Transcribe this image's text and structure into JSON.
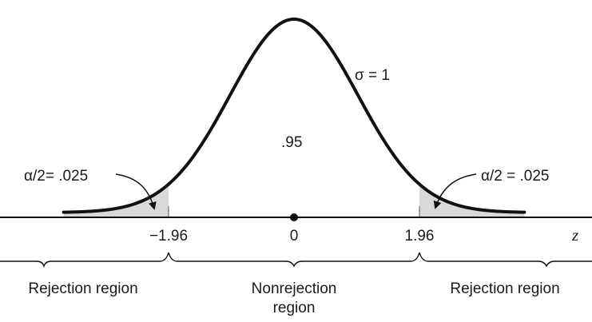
{
  "figure": {
    "sigma_label": "σ = 1",
    "center_area_label": ".95",
    "left_tail_label": "α/2= .025",
    "right_tail_label": "α/2 = .025",
    "axis_variable": "z",
    "ticks": {
      "left": "−1.96",
      "center": "0",
      "right": "1.96"
    },
    "regions": {
      "left": "Rejection region",
      "middle_line1": "Nonrejection",
      "middle_line2": "region",
      "right": "Rejection region"
    },
    "colors": {
      "curve": "#111111",
      "tail_fill": "#d9d9d9",
      "text": "#1a1a1a"
    }
  }
}
